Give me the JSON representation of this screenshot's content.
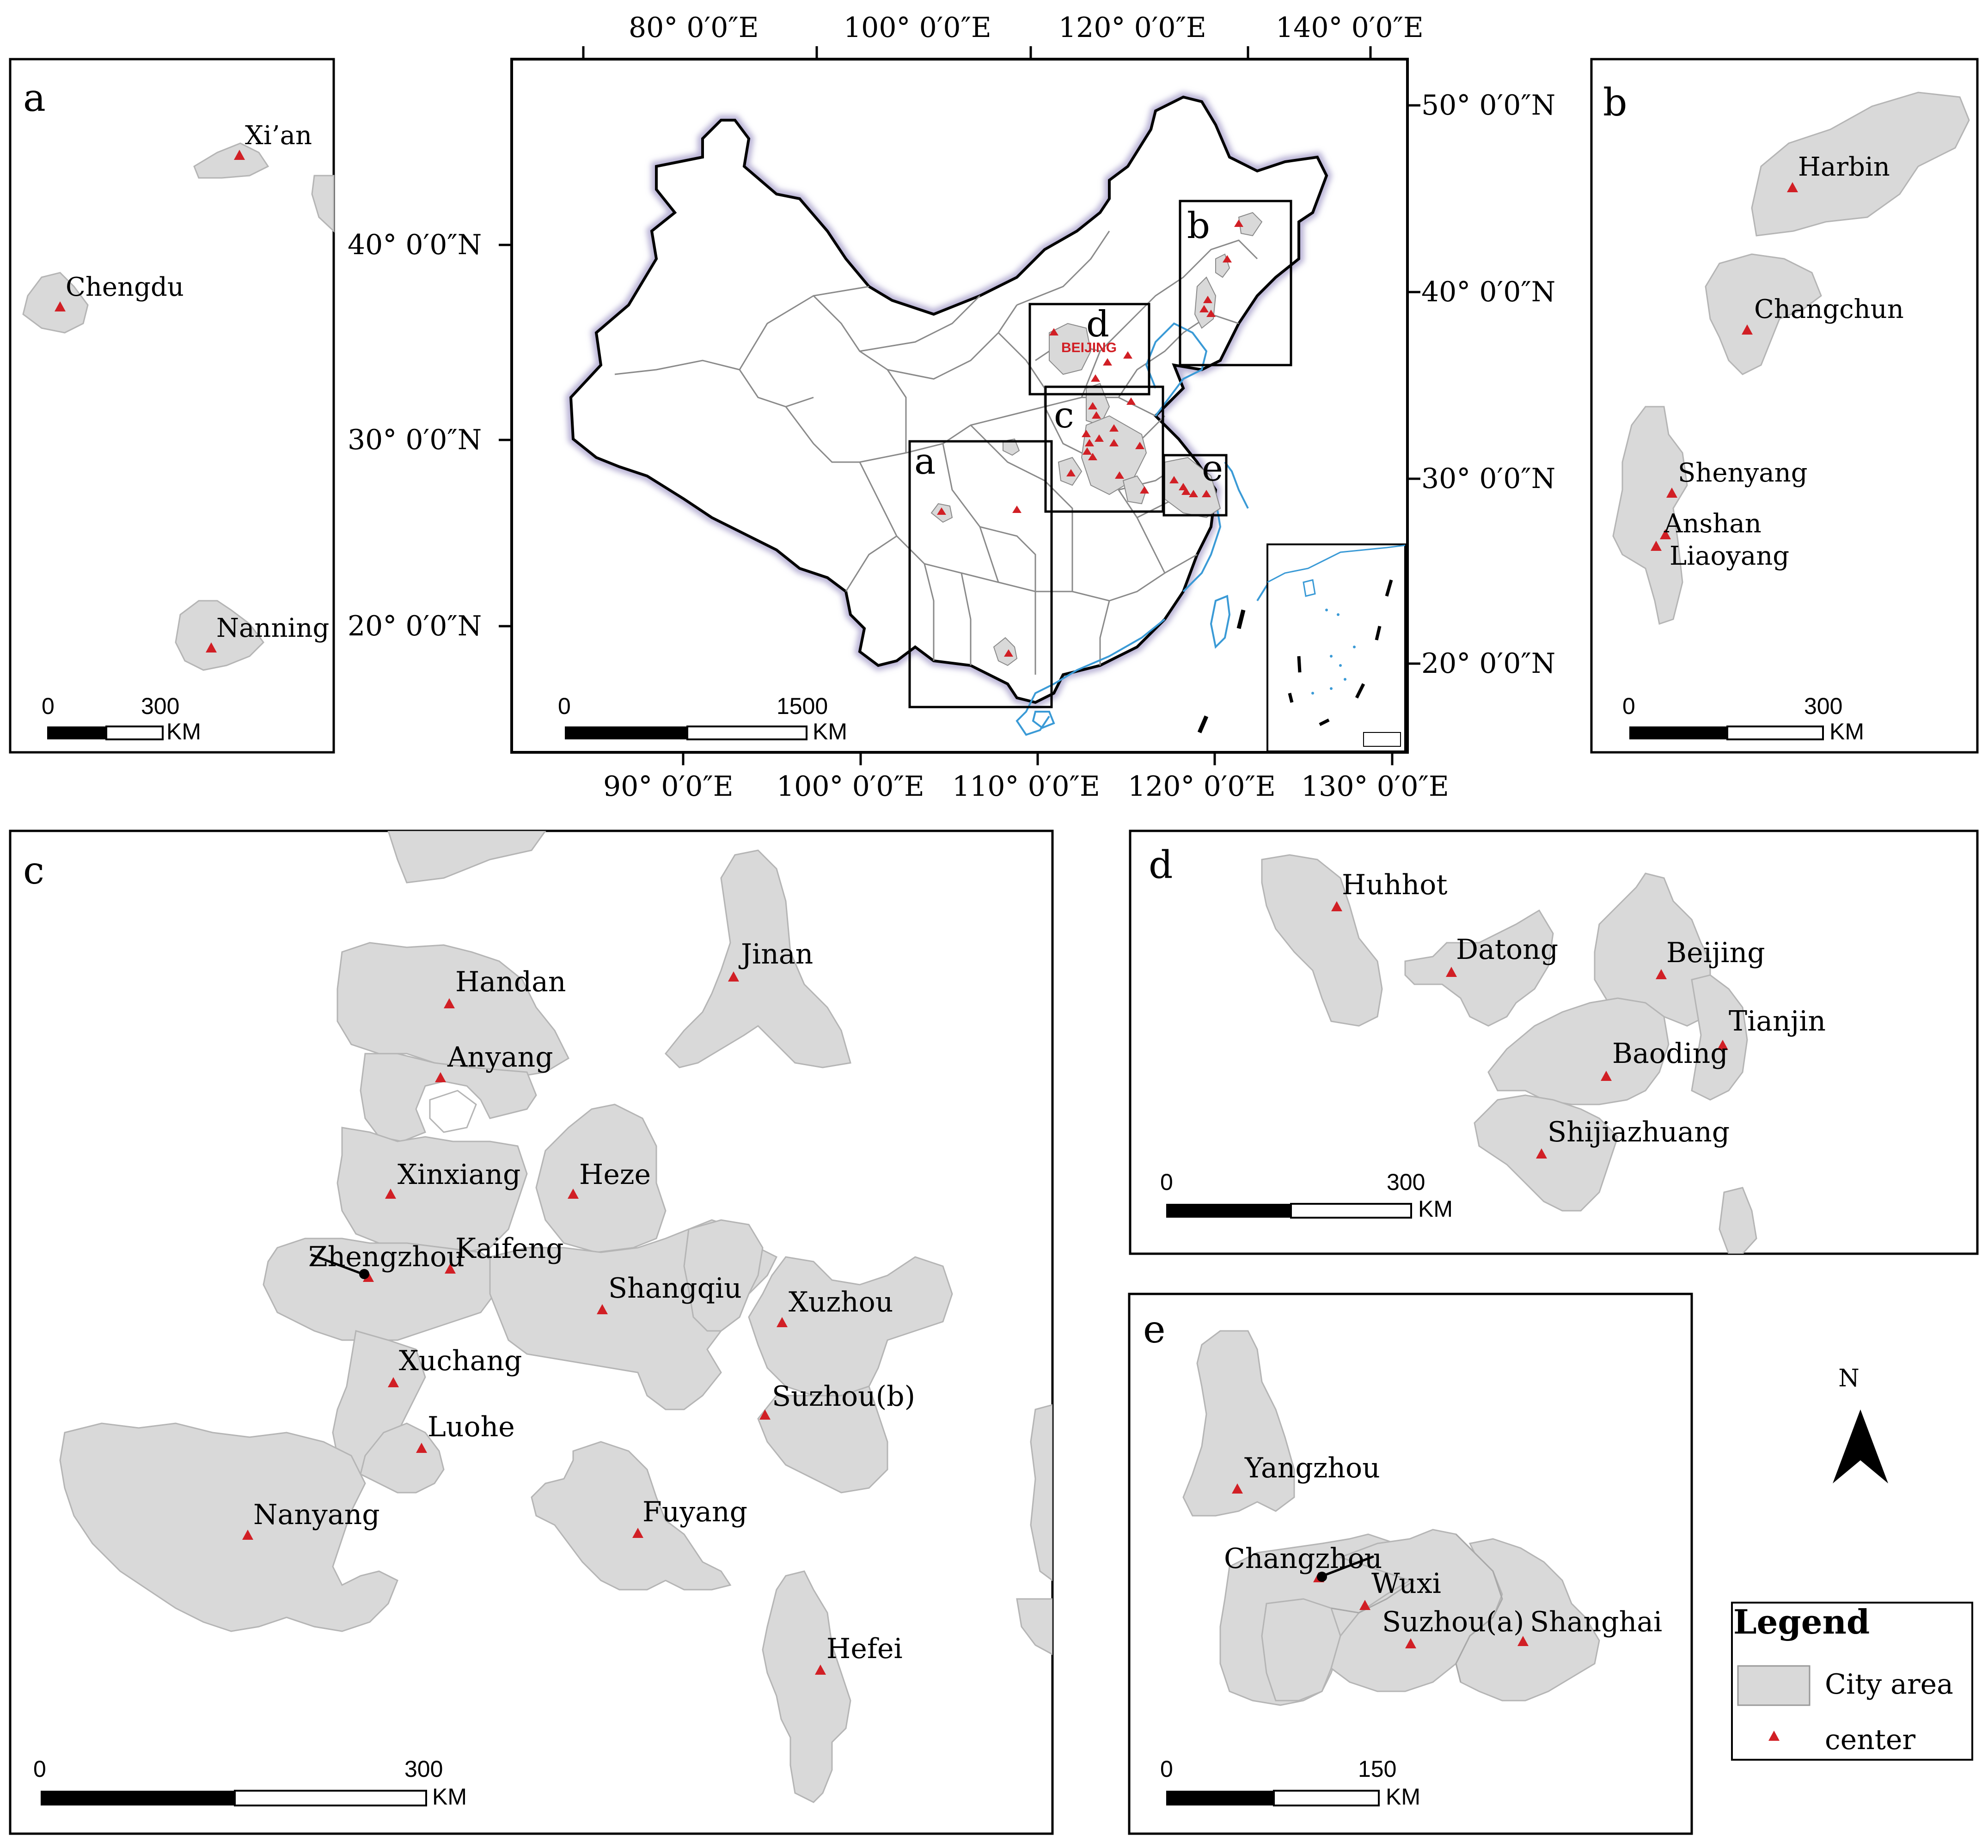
{
  "colors": {
    "city_fill": "#d9d9d9",
    "city_stroke": "#b5b5b5",
    "center_marker": "#d11f25",
    "coast_blue": "#3a9ad6",
    "border_halo": "#b9b3d6",
    "frame": "#000000"
  },
  "main_map": {
    "top_lon_labels": [
      "80° 0′0″E",
      "100° 0′0″E",
      "120° 0′0″E",
      "140° 0′0″E"
    ],
    "bottom_lon_labels": [
      "90° 0′0″E",
      "100° 0′0″E",
      "110° 0′0″E",
      "120° 0′0″E",
      "130° 0′0″E"
    ],
    "left_lat_labels": [
      "40° 0′0″N",
      "30° 0′0″N",
      "20° 0′0″N"
    ],
    "right_lat_labels": [
      "50° 0′0″N",
      "40° 0′0″N",
      "30° 0′0″N",
      "20° 0′0″N"
    ],
    "region_box_labels": [
      "a",
      "b",
      "c",
      "d",
      "e"
    ],
    "capital_label": "BEIJING",
    "scalebar": {
      "start": "0",
      "end": "1500",
      "unit": "KM"
    }
  },
  "panels": {
    "a": {
      "letter": "a",
      "cities": [
        "Xi’an",
        "Chengdu",
        "Nanning"
      ],
      "scalebar": {
        "start": "0",
        "end": "300",
        "unit": "KM"
      }
    },
    "b": {
      "letter": "b",
      "cities": [
        "Harbin",
        "Changchun",
        "Shenyang",
        "Anshan",
        "Liaoyang"
      ],
      "scalebar": {
        "start": "0",
        "end": "300",
        "unit": "KM"
      }
    },
    "c": {
      "letter": "c",
      "cities": [
        "Handan",
        "Jinan",
        "Anyang",
        "Xinxiang",
        "Heze",
        "Zhengzhou",
        "Kaifeng",
        "Shangqiu",
        "Xuzhou",
        "Xuchang",
        "Suzhou(b)",
        "Luohe",
        "Nanyang",
        "Fuyang",
        "Hefei"
      ],
      "scalebar": {
        "start": "0",
        "end": "300",
        "unit": "KM"
      }
    },
    "d": {
      "letter": "d",
      "cities": [
        "Huhhot",
        "Datong",
        "Beijing",
        "Tianjin",
        "Baoding",
        "Shijiazhuang"
      ],
      "scalebar": {
        "start": "0",
        "end": "300",
        "unit": "KM"
      }
    },
    "e": {
      "letter": "e",
      "cities": [
        "Yangzhou",
        "Changzhou",
        "Wuxi",
        "Suzhou(a)",
        "Shanghai"
      ],
      "scalebar": {
        "start": "0",
        "end": "150",
        "unit": "KM"
      }
    }
  },
  "north_arrow": {
    "label": "N"
  },
  "legend": {
    "title": "Legend",
    "items": [
      {
        "label": "City area",
        "symbol": "gray-box"
      },
      {
        "label": "center",
        "symbol": "red-triangle"
      }
    ]
  }
}
